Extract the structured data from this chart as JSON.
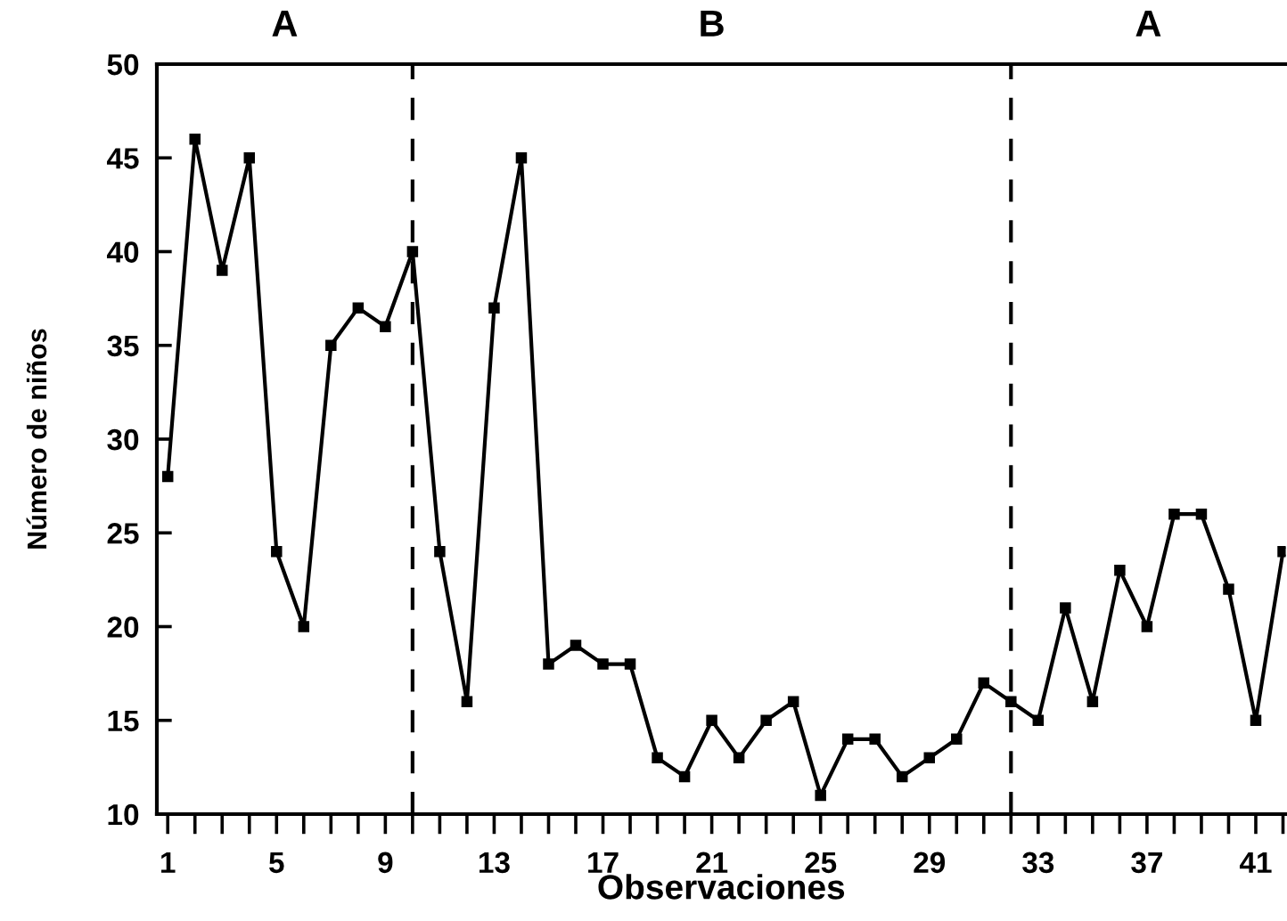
{
  "chart_data": {
    "type": "line",
    "xlabel": "Observaciones",
    "ylabel": "Número de niños",
    "annotations": [
      "A",
      "B",
      "A"
    ],
    "x": [
      1,
      2,
      3,
      4,
      5,
      6,
      7,
      8,
      9,
      10,
      11,
      12,
      13,
      14,
      15,
      16,
      17,
      18,
      19,
      20,
      21,
      22,
      23,
      24,
      25,
      26,
      27,
      28,
      29,
      30,
      31,
      32,
      33,
      34,
      35,
      36,
      37,
      38,
      39,
      40,
      41,
      42
    ],
    "series": [
      {
        "color": "#000000",
        "values": [
          28,
          46,
          39,
          45,
          24,
          20,
          35,
          37,
          36,
          40,
          24,
          16,
          37,
          45,
          18,
          19,
          18,
          18,
          13,
          12,
          15,
          13,
          15,
          16,
          11,
          14,
          14,
          12,
          13,
          14,
          17,
          16,
          15,
          21,
          16,
          23,
          20,
          26,
          26,
          22,
          15,
          24
        ]
      }
    ],
    "xlim": [
      0.6,
      42.1
    ],
    "ylim": [
      10,
      50
    ],
    "xticks": [
      1,
      {
        "value": 2,
        "label": null
      },
      {
        "value": 3,
        "label": null
      },
      {
        "value": 4,
        "label": null
      },
      5,
      {
        "value": 6,
        "label": null
      },
      {
        "value": 7,
        "label": null
      },
      {
        "value": 8,
        "label": null
      },
      9,
      {
        "value": 10,
        "label": null
      },
      {
        "value": 11,
        "label": null
      },
      {
        "value": 12,
        "label": null
      },
      13,
      {
        "value": 14,
        "label": null
      },
      {
        "value": 15,
        "label": null
      },
      {
        "value": 16,
        "label": null
      },
      17,
      {
        "value": 18,
        "label": null
      },
      {
        "value": 19,
        "label": null
      },
      {
        "value": 20,
        "label": null
      },
      21,
      {
        "value": 22,
        "label": null
      },
      {
        "value": 23,
        "label": null
      },
      {
        "value": 24,
        "label": null
      },
      25,
      {
        "value": 26,
        "label": null
      },
      {
        "value": 27,
        "label": null
      },
      {
        "value": 28,
        "label": null
      },
      29,
      {
        "value": 30,
        "label": null
      },
      {
        "value": 31,
        "label": null
      },
      {
        "value": 32,
        "label": null
      },
      33,
      {
        "value": 34,
        "label": null
      },
      {
        "value": 35,
        "label": null
      },
      {
        "value": 36,
        "label": null
      },
      37,
      {
        "value": 38,
        "label": null
      },
      {
        "value": 39,
        "label": null
      },
      {
        "value": 40,
        "label": null
      },
      41,
      {
        "value": 42,
        "label": null
      }
    ],
    "yticks": [
      10,
      15,
      20,
      25,
      30,
      35,
      40,
      45,
      50
    ],
    "ref_lines": [
      {
        "axis": "x",
        "value": 10,
        "color": "#000000",
        "line_style": "dashed"
      },
      {
        "axis": "x",
        "value": 32,
        "color": "#000000",
        "line_style": "dashed"
      }
    ],
    "marker": "square",
    "line_style": "solid",
    "grid": false,
    "legend": false
  }
}
